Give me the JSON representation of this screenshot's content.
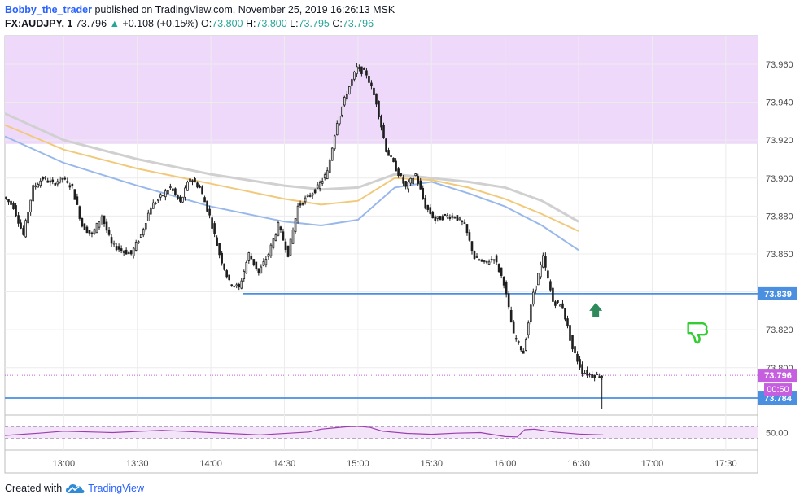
{
  "header": {
    "author": "Bobby_the_trader",
    "published_text": "published on TradingView.com, November 25, 2019 16:26:13 MSK",
    "symbol": "FX:AUDJPY, 1",
    "last": "73.796",
    "change_arrow": "▲",
    "change": "+0.108 (+0.15%)",
    "open_label": "O:",
    "open": "73.800",
    "high_label": "H:",
    "high": "73.800",
    "low_label": "L:",
    "low": "73.795",
    "close_label": "C:",
    "close": "73.796"
  },
  "footer": {
    "created_with": "Created with",
    "brand": "TradingView"
  },
  "colors": {
    "zone": "#efd9fb",
    "level_line": "#4a8fe0",
    "ma_grey": "#d0d0d0",
    "ma_yellow": "#f2c97a",
    "ma_blue": "#98b8ec",
    "candle": "#1e1e1e",
    "rsi": "#9b3fb0",
    "price_tag": "#c65ee0",
    "level_tag": "#4a8fe0",
    "marker_arrow": "#2f8a5b",
    "thumb": "#33cc33"
  },
  "icons": {
    "arrow_marker": "up-arrow-icon",
    "thumb": "thumbs-down-icon",
    "logo": "tradingview-cloud-icon"
  },
  "chart_data": {
    "type": "candlestick",
    "symbol": "FX:AUDJPY",
    "interval": "1",
    "xlabel": "",
    "ylabel": "",
    "time_ticks": [
      "13:00",
      "13:30",
      "14:00",
      "14:30",
      "15:00",
      "15:30",
      "16:00",
      "16:30",
      "17:00",
      "17:30"
    ],
    "price_ticks": [
      "73.960",
      "73.940",
      "73.920",
      "73.900",
      "73.880",
      "73.860",
      "73.840",
      "73.820",
      "73.800"
    ],
    "price_ticks_num": [
      73.96,
      73.94,
      73.92,
      73.9,
      73.88,
      73.86,
      73.84,
      73.82,
      73.8
    ],
    "ylim": [
      73.775,
      73.975
    ],
    "time_range_minutes_from_13_00": [
      -24,
      283
    ],
    "resistance_zone": [
      73.918,
      73.975
    ],
    "horizontal_levels": [
      {
        "value": 73.839,
        "label": "73.839",
        "start": "14:13"
      },
      {
        "value": 73.784,
        "label": "73.784",
        "start": "12:36"
      }
    ],
    "last_price_tag": "73.796",
    "countdown_tag": "00:50",
    "price_path": {
      "minutes_from_13_00": [
        -24,
        -20,
        -16,
        -12,
        -8,
        -4,
        0,
        4,
        8,
        12,
        16,
        20,
        24,
        28,
        32,
        36,
        40,
        44,
        48,
        52,
        56,
        60,
        64,
        68,
        72,
        76,
        80,
        84,
        88,
        92,
        96,
        100,
        104,
        108,
        112,
        116,
        120,
        124,
        128,
        132,
        136,
        140,
        144,
        148,
        152,
        156,
        160,
        164,
        168,
        172,
        176,
        180,
        184,
        188,
        192,
        196,
        200,
        204,
        208,
        212,
        216,
        220
      ],
      "values": [
        73.89,
        73.885,
        73.87,
        73.895,
        73.9,
        73.897,
        73.9,
        73.895,
        73.875,
        73.87,
        73.88,
        73.865,
        73.862,
        73.86,
        73.87,
        73.885,
        73.89,
        73.895,
        73.887,
        73.9,
        73.895,
        73.88,
        73.86,
        73.845,
        73.842,
        73.86,
        73.85,
        73.86,
        73.875,
        73.86,
        73.885,
        73.89,
        73.895,
        73.903,
        73.93,
        73.945,
        73.958,
        73.955,
        73.94,
        73.915,
        73.905,
        73.895,
        73.902,
        73.885,
        73.878,
        73.88,
        73.88,
        73.875,
        73.858,
        73.855,
        73.858,
        73.845,
        73.817,
        73.808,
        73.84,
        73.858,
        73.835,
        73.832,
        73.81,
        73.798,
        73.796,
        73.796
      ]
    },
    "moving_averages": [
      {
        "color": "grey",
        "minutes_from_13_00": [
          -24,
          0,
          30,
          60,
          90,
          105,
          120,
          135,
          150,
          165,
          180,
          195,
          210
        ],
        "values": [
          73.934,
          73.92,
          73.91,
          73.902,
          73.896,
          73.894,
          73.895,
          73.902,
          73.9,
          73.898,
          73.895,
          73.888,
          73.877
        ]
      },
      {
        "color": "yellow",
        "minutes_from_13_00": [
          -24,
          0,
          30,
          60,
          90,
          105,
          120,
          135,
          150,
          165,
          180,
          195,
          210
        ],
        "values": [
          73.928,
          73.915,
          73.905,
          73.897,
          73.889,
          73.886,
          73.888,
          73.9,
          73.899,
          73.895,
          73.889,
          73.881,
          73.872
        ]
      },
      {
        "color": "blue",
        "minutes_from_13_00": [
          -24,
          0,
          30,
          60,
          90,
          105,
          120,
          135,
          150,
          165,
          180,
          195,
          210
        ],
        "values": [
          73.922,
          73.908,
          73.896,
          73.885,
          73.877,
          73.875,
          73.878,
          73.895,
          73.898,
          73.892,
          73.885,
          73.875,
          73.862
        ]
      }
    ],
    "rsi": {
      "level_label": "50.00",
      "level": 50,
      "upper_band": 70,
      "lower_band": 30,
      "minutes_from_13_00": [
        -24,
        -10,
        0,
        20,
        40,
        60,
        80,
        100,
        105,
        110,
        115,
        120,
        125,
        130,
        140,
        150,
        160,
        170,
        180,
        185,
        188,
        192,
        200,
        210,
        220
      ],
      "values": [
        40,
        48,
        55,
        50,
        58,
        50,
        42,
        52,
        62,
        66,
        70,
        72,
        68,
        55,
        47,
        44,
        48,
        50,
        36,
        35,
        60,
        62,
        52,
        45,
        42
      ]
    },
    "marker": {
      "type": "arrow-up",
      "time_minutes_from_13_00": 217,
      "price": 73.83
    },
    "thumb": {
      "time_minutes_from_13_00": 258,
      "price": 73.82
    }
  }
}
